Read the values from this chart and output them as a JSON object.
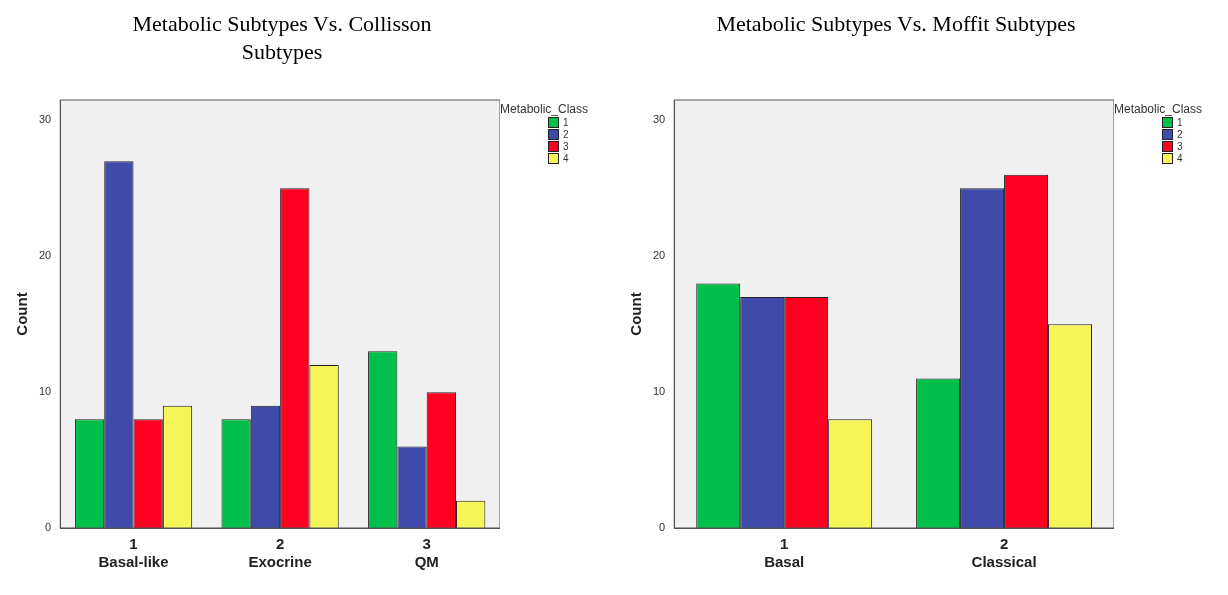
{
  "chart_data": [
    {
      "type": "bar",
      "title": "Metabolic Subtypes Vs. Collisson Subtypes",
      "ylabel": "Count",
      "legend_title": "Metabolic_Class",
      "legend": "right",
      "categories": [
        "Basal-like",
        "Exocrine",
        "QM"
      ],
      "annotations": [
        "1",
        "2",
        "3"
      ],
      "series": [
        {
          "name": "1",
          "color": "#00c04b",
          "values": [
            8,
            8,
            13
          ]
        },
        {
          "name": "2",
          "color": "#3f4aa9",
          "values": [
            27,
            9,
            6
          ]
        },
        {
          "name": "3",
          "color": "#ff0020",
          "values": [
            8,
            25,
            10
          ]
        },
        {
          "name": "4",
          "color": "#f5f55a",
          "values": [
            9,
            12,
            2
          ]
        }
      ],
      "ylim": [
        0,
        31.5
      ],
      "yticks": [
        0,
        10,
        20,
        30
      ],
      "grid": false
    },
    {
      "type": "bar",
      "title": "Metabolic Subtypes Vs. Moffit Subtypes",
      "ylabel": "Count",
      "legend_title": "Metabolic_Class",
      "legend": "right",
      "categories": [
        "Basal",
        "Classical"
      ],
      "annotations": [
        "1",
        "2"
      ],
      "series": [
        {
          "name": "1",
          "color": "#00c04b",
          "values": [
            18,
            11
          ]
        },
        {
          "name": "2",
          "color": "#3f4aa9",
          "values": [
            17,
            25
          ]
        },
        {
          "name": "3",
          "color": "#ff0020",
          "values": [
            17,
            26
          ]
        },
        {
          "name": "4",
          "color": "#f5f55a",
          "values": [
            8,
            15
          ]
        }
      ],
      "ylim": [
        0,
        31.5
      ],
      "yticks": [
        0,
        10,
        20,
        30
      ],
      "grid": false
    }
  ]
}
